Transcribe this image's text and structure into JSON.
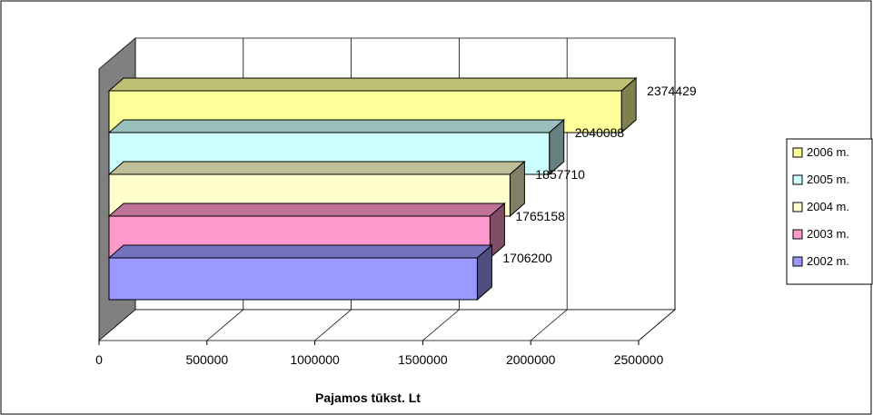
{
  "chart_data": {
    "type": "bar",
    "orientation": "horizontal",
    "three_d": true,
    "xlabel": "Pajamos tūkst. Lt",
    "xlim": [
      0,
      2500000
    ],
    "xticks": [
      "0",
      "500000",
      "1000000",
      "1500000",
      "2000000",
      "2500000"
    ],
    "grid": true,
    "legend_position": "right",
    "series": [
      {
        "name": "2002 m.",
        "value": 1706200,
        "label": "1706200",
        "color": "#9999ff"
      },
      {
        "name": "2003 m.",
        "value": 1765158,
        "label": "1765158",
        "color": "#ff99cc"
      },
      {
        "name": "2004 m.",
        "value": 1857710,
        "label": "1857710",
        "color": "#ffffcc"
      },
      {
        "name": "2005 m.",
        "value": 2040088,
        "label": "2040088",
        "color": "#ccffff"
      },
      {
        "name": "2006 m.",
        "value": 2374429,
        "label": "2374429",
        "color": "#ffff99"
      }
    ],
    "legend_order": [
      "2006 m.",
      "2005 m.",
      "2004 m.",
      "2003 m.",
      "2002 m."
    ]
  }
}
